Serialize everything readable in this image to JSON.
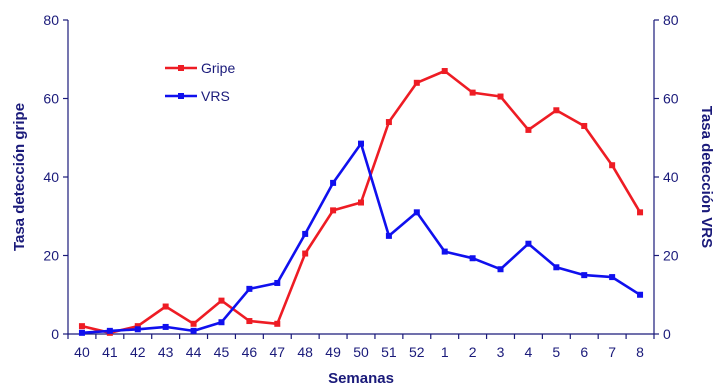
{
  "chart_data": {
    "type": "line",
    "title": "",
    "xlabel": "Semanas",
    "ylabel_left": "Tasa detección gripe",
    "ylabel_right": "Tasa detección VRS",
    "categories": [
      "40",
      "41",
      "42",
      "43",
      "44",
      "45",
      "46",
      "47",
      "48",
      "49",
      "50",
      "51",
      "52",
      "1",
      "2",
      "3",
      "4",
      "5",
      "6",
      "7",
      "8"
    ],
    "ylim_left": [
      0,
      80
    ],
    "ylim_right": [
      0,
      80
    ],
    "yticks": [
      "0",
      "20",
      "40",
      "60",
      "80"
    ],
    "grid": false,
    "legend_position": "top-left",
    "series": [
      {
        "name": "Gripe",
        "color": "#ee1c24",
        "axis": "left",
        "values": [
          2,
          0.3,
          2,
          7,
          2.6,
          8.5,
          3.3,
          2.6,
          20.5,
          31.5,
          33.5,
          54,
          64,
          67,
          61.5,
          60.5,
          52,
          57,
          53,
          43,
          31
        ]
      },
      {
        "name": "VRS",
        "color": "#1010ee",
        "axis": "right",
        "values": [
          0.3,
          0.8,
          1.2,
          1.8,
          0.8,
          3,
          11.5,
          13,
          25.5,
          38.5,
          48.5,
          25,
          31,
          21,
          19.3,
          16.5,
          23,
          17,
          15,
          14.5,
          10
        ]
      }
    ]
  }
}
